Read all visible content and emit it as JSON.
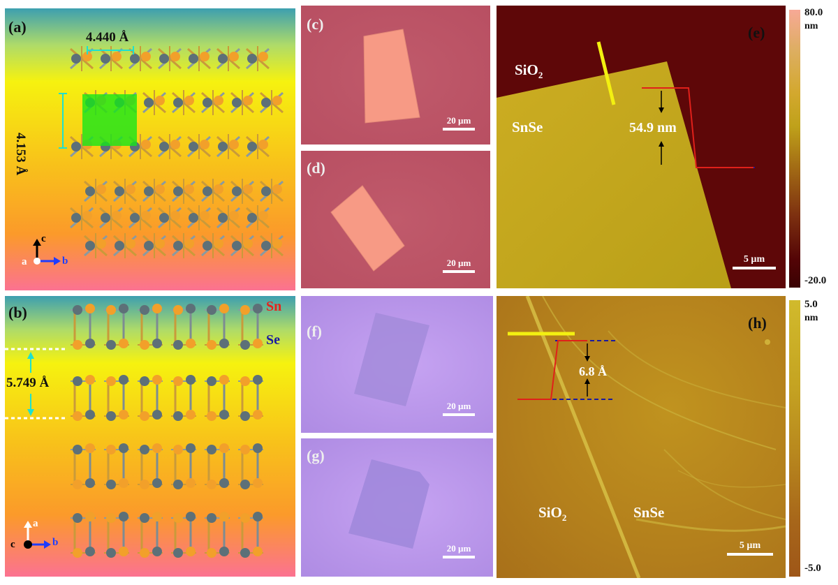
{
  "panels": {
    "a": {
      "label": "(a)",
      "dim_b": "4.440 Å",
      "dim_c": "4.153 Å",
      "axis_c": "c",
      "axis_b": "b",
      "axis_a": "a"
    },
    "b": {
      "label": "(b)",
      "sn": "Sn",
      "se": "Se",
      "spacing": "5.749 Å",
      "axis_a": "a",
      "axis_b": "b",
      "axis_c": "c"
    },
    "c": {
      "label": "(c)",
      "scale": "20 µm"
    },
    "d": {
      "label": "(d)",
      "scale": "20 µm"
    },
    "e": {
      "label": "(e)",
      "sio2": "SiO",
      "sio2_sub": "2",
      "snse": "SnSe",
      "height": "54.9 nm",
      "scale": "5 µm",
      "cb_max": "80.0",
      "cb_unit": "nm",
      "cb_min": "-20.0"
    },
    "f": {
      "label": "(f)",
      "scale": "20 µm"
    },
    "g": {
      "label": "(g)",
      "scale": "20 µm"
    },
    "h": {
      "label": "(h)",
      "sio2": "SiO",
      "sio2_sub": "2",
      "snse": "SnSe",
      "height": "6.8 Å",
      "scale": "5 µm",
      "cb_max": "5.0",
      "cb_unit": "nm",
      "cb_min": "-5.0"
    }
  },
  "colors": {
    "sn_label": "#e8211d",
    "se_label": "#1a1aa0",
    "atom_sn": "#f2a02a",
    "atom_se": "#5d7078",
    "unit_cell": "#16e61a",
    "dim_arrow": "#1ee0d0",
    "optical_red_bg": "#bf5b6c",
    "optical_purple_bg": "#b48fe6",
    "afm_e_high": "#c8a81e",
    "afm_e_low": "#5c0606",
    "afm_h_bg": "#b7891c",
    "profile_line": "#e0201a",
    "trace_line": "#f3f011"
  }
}
